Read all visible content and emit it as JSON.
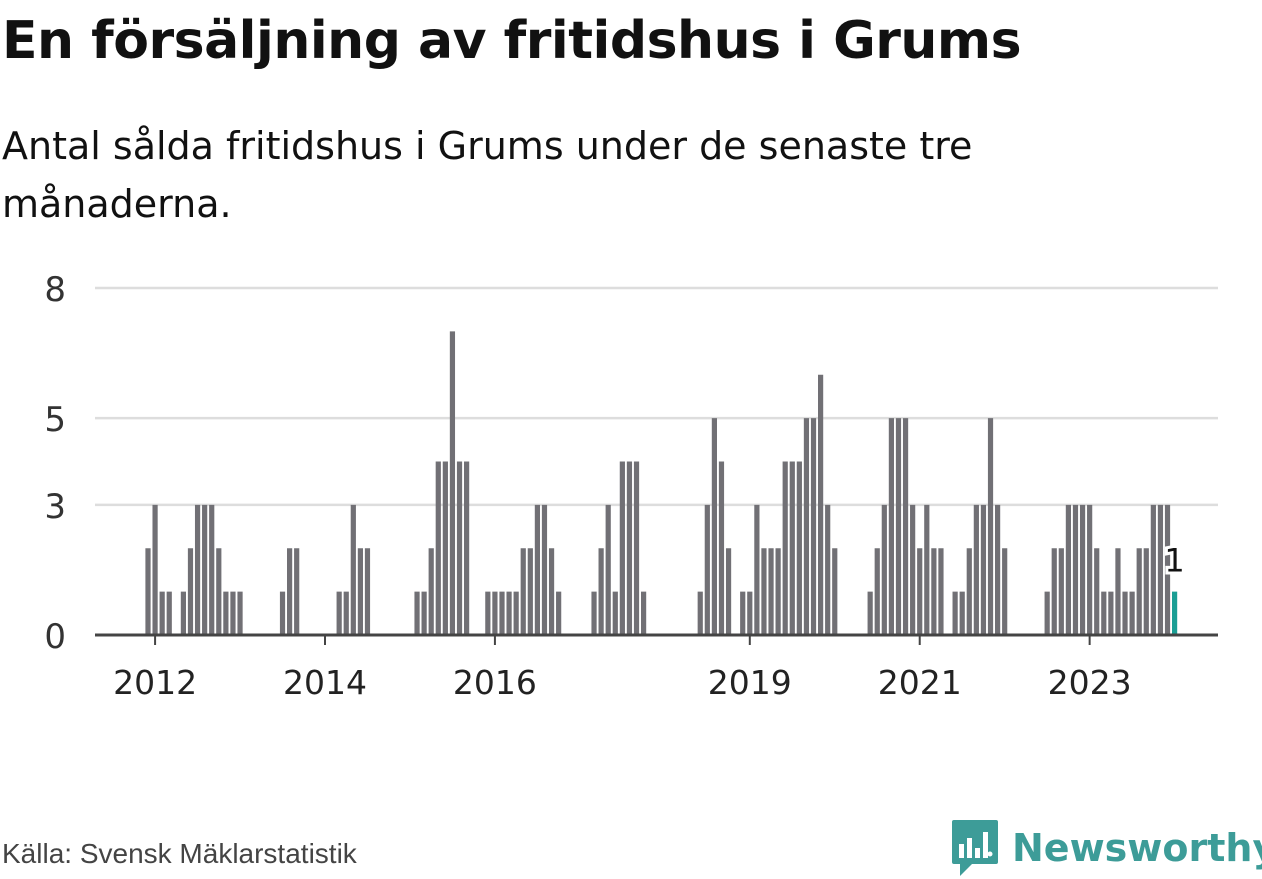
{
  "title": "En försäljning av fritidshus i Grums",
  "subtitle": "Antal sålda fritidshus i Grums under de senaste tre månaderna.",
  "source": "Källa: Svensk Mäklarstatistik",
  "brand": {
    "name": "Newsworthy",
    "color": "#3d9c98"
  },
  "colors": {
    "bar": "#717075",
    "highlight": "#1a9e94",
    "grid": "#dddddd",
    "axis": "#444444"
  },
  "chart_data": {
    "type": "bar",
    "title": "En försäljning av fritidshus i Grums",
    "ylabel": "",
    "xlabel": "",
    "ylim": [
      0,
      8
    ],
    "yticks": [
      0,
      3,
      5,
      8
    ],
    "xtick_labels": [
      "2012",
      "2014",
      "2016",
      "2019",
      "2021",
      "2023"
    ],
    "grid": true,
    "highlight_label": "1",
    "periods": [
      "2011-12",
      "2012-01",
      "2012-02",
      "2012-03",
      "2012-04",
      "2012-05",
      "2012-06",
      "2012-07",
      "2012-08",
      "2012-09",
      "2012-10",
      "2012-11",
      "2012-12",
      "2013-01",
      "2013-02",
      "2013-03",
      "2013-04",
      "2013-05",
      "2013-06",
      "2013-07",
      "2013-08",
      "2013-09",
      "2013-10",
      "2013-11",
      "2013-12",
      "2014-01",
      "2014-02",
      "2014-03",
      "2014-04",
      "2014-05",
      "2014-06",
      "2014-07",
      "2014-08",
      "2014-09",
      "2014-10",
      "2014-11",
      "2014-12",
      "2015-01",
      "2015-02",
      "2015-03",
      "2015-04",
      "2015-05",
      "2015-06",
      "2015-07",
      "2015-08",
      "2015-09",
      "2015-10",
      "2015-11",
      "2015-12",
      "2016-01",
      "2016-02",
      "2016-03",
      "2016-04",
      "2016-05",
      "2016-06",
      "2016-07",
      "2016-08",
      "2016-09",
      "2016-10",
      "2016-11",
      "2016-12",
      "2017-01",
      "2017-02",
      "2017-03",
      "2017-04",
      "2017-05",
      "2017-06",
      "2017-07",
      "2017-08",
      "2017-09",
      "2017-10",
      "2017-11",
      "2017-12",
      "2018-01",
      "2018-02",
      "2018-03",
      "2018-04",
      "2018-05",
      "2018-06",
      "2018-07",
      "2018-08",
      "2018-09",
      "2018-10",
      "2018-11",
      "2018-12",
      "2019-01",
      "2019-02",
      "2019-03",
      "2019-04",
      "2019-05",
      "2019-06",
      "2019-07",
      "2019-08",
      "2019-09",
      "2019-10",
      "2019-11",
      "2019-12",
      "2020-01",
      "2020-02",
      "2020-03",
      "2020-04",
      "2020-05",
      "2020-06",
      "2020-07",
      "2020-08",
      "2020-09",
      "2020-10",
      "2020-11",
      "2020-12",
      "2021-01",
      "2021-02",
      "2021-03",
      "2021-04",
      "2021-05",
      "2021-06",
      "2021-07",
      "2021-08",
      "2021-09",
      "2021-10",
      "2021-11",
      "2021-12",
      "2022-01",
      "2022-02",
      "2022-03",
      "2022-04",
      "2022-05",
      "2022-06",
      "2022-07",
      "2022-08",
      "2022-09",
      "2022-10",
      "2022-11",
      "2022-12",
      "2023-01",
      "2023-02",
      "2023-03",
      "2023-04",
      "2023-05",
      "2023-06",
      "2023-07",
      "2023-08",
      "2023-09",
      "2023-10",
      "2023-11",
      "2023-12",
      "2024-01"
    ],
    "values": [
      2,
      3,
      1,
      1,
      0,
      1,
      2,
      3,
      3,
      3,
      2,
      1,
      1,
      1,
      0,
      0,
      0,
      0,
      0,
      1,
      2,
      2,
      0,
      0,
      0,
      0,
      0,
      1,
      1,
      3,
      2,
      2,
      0,
      0,
      0,
      0,
      0,
      0,
      1,
      1,
      2,
      4,
      4,
      7,
      4,
      4,
      0,
      0,
      1,
      1,
      1,
      1,
      1,
      2,
      2,
      3,
      3,
      2,
      1,
      0,
      0,
      0,
      0,
      1,
      2,
      3,
      1,
      4,
      4,
      4,
      1,
      0,
      0,
      0,
      0,
      0,
      0,
      0,
      1,
      3,
      5,
      4,
      2,
      0,
      1,
      1,
      3,
      2,
      2,
      2,
      4,
      4,
      4,
      5,
      5,
      6,
      3,
      2,
      0,
      0,
      0,
      0,
      1,
      2,
      3,
      5,
      5,
      5,
      3,
      2,
      3,
      2,
      2,
      0,
      1,
      1,
      2,
      3,
      3,
      5,
      3,
      2,
      0,
      0,
      0,
      0,
      0,
      1,
      2,
      2,
      3,
      3,
      3,
      3,
      2,
      1,
      1,
      2,
      1,
      1,
      2,
      2,
      3,
      3,
      3,
      1
    ]
  }
}
